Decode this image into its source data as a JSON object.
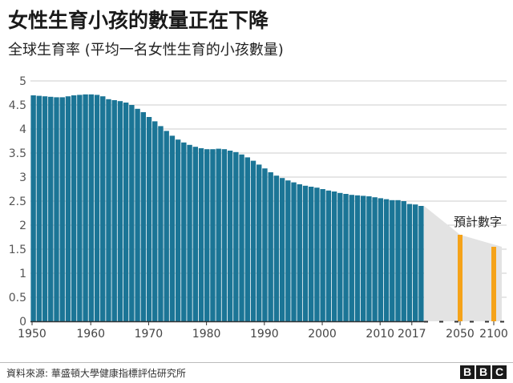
{
  "header": {
    "title": "女性生育小孩的數量正在下降",
    "subtitle": "全球生育率 (平均一名女性生育的小孩數量)"
  },
  "footer": {
    "source": "資料來源: 華盛頓大學健康指標評估研究所",
    "logo": [
      "B",
      "B",
      "C"
    ]
  },
  "colors": {
    "historical": "#1b7596",
    "projection": "#f5a31a",
    "projection_band": "#e3e3e3",
    "grid": "#cccccc",
    "axis": "#333333"
  },
  "chart_data": {
    "type": "bar",
    "title": "",
    "xlabel": "",
    "ylabel": "",
    "ylim": [
      0,
      5
    ],
    "y_ticks": [
      "0",
      "0.5",
      "1",
      "1.5",
      "2",
      "2.5",
      "3",
      "3.5",
      "4",
      "4.5",
      "5"
    ],
    "x_tick_labels": [
      "1950",
      "1960",
      "1970",
      "1980",
      "1990",
      "2000",
      "2010",
      "2017",
      "2050",
      "2100"
    ],
    "grid": true,
    "annotation": "預計數字",
    "series": [
      {
        "x": [
          1950,
          1951,
          1952,
          1953,
          1954,
          1955,
          1956,
          1957,
          1958,
          1959,
          1960,
          1961,
          1962,
          1963,
          1964,
          1965,
          1966,
          1967,
          1968,
          1969,
          1970,
          1971,
          1972,
          1973,
          1974,
          1975,
          1976,
          1977,
          1978,
          1979,
          1980,
          1981,
          1982,
          1983,
          1984,
          1985,
          1986,
          1987,
          1988,
          1989,
          1990,
          1991,
          1992,
          1993,
          1994,
          1995,
          1996,
          1997,
          1998,
          1999,
          2000,
          2001,
          2002,
          2003,
          2004,
          2005,
          2006,
          2007,
          2008,
          2009,
          2010,
          2011,
          2012,
          2013,
          2014,
          2015,
          2016,
          2017
        ],
        "values": [
          4.7,
          4.69,
          4.68,
          4.67,
          4.66,
          4.66,
          4.68,
          4.7,
          4.71,
          4.72,
          4.72,
          4.71,
          4.68,
          4.62,
          4.6,
          4.58,
          4.55,
          4.5,
          4.42,
          4.35,
          4.25,
          4.16,
          4.06,
          3.96,
          3.86,
          3.78,
          3.72,
          3.67,
          3.63,
          3.6,
          3.58,
          3.58,
          3.59,
          3.58,
          3.55,
          3.52,
          3.47,
          3.41,
          3.34,
          3.26,
          3.18,
          3.1,
          3.03,
          2.98,
          2.93,
          2.89,
          2.85,
          2.82,
          2.8,
          2.78,
          2.75,
          2.72,
          2.7,
          2.67,
          2.65,
          2.63,
          2.62,
          2.61,
          2.6,
          2.58,
          2.56,
          2.54,
          2.52,
          2.52,
          2.5,
          2.44,
          2.43,
          2.4
        ]
      },
      {
        "x": [
          2050,
          2100
        ],
        "values": [
          1.8,
          1.55
        ]
      }
    ]
  }
}
